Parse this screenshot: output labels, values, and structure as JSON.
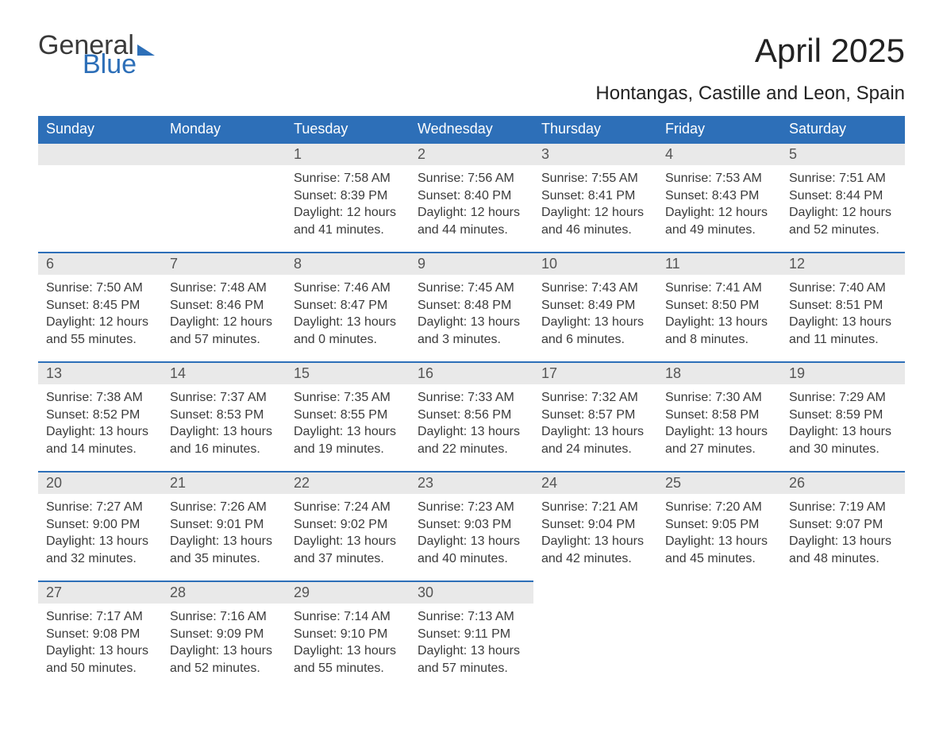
{
  "brand": {
    "word1": "General",
    "word2": "Blue"
  },
  "title": "April 2025",
  "location": "Hontangas, Castille and Leon, Spain",
  "colors": {
    "header_bg": "#2d6fb8",
    "header_text": "#ffffff",
    "daynum_bg": "#e9e9e9",
    "rule": "#2d6fb8"
  },
  "weekdays": [
    "Sunday",
    "Monday",
    "Tuesday",
    "Wednesday",
    "Thursday",
    "Friday",
    "Saturday"
  ],
  "weeks": [
    [
      null,
      null,
      {
        "n": "1",
        "sunrise": "Sunrise: 7:58 AM",
        "sunset": "Sunset: 8:39 PM",
        "daylight": "Daylight: 12 hours and 41 minutes."
      },
      {
        "n": "2",
        "sunrise": "Sunrise: 7:56 AM",
        "sunset": "Sunset: 8:40 PM",
        "daylight": "Daylight: 12 hours and 44 minutes."
      },
      {
        "n": "3",
        "sunrise": "Sunrise: 7:55 AM",
        "sunset": "Sunset: 8:41 PM",
        "daylight": "Daylight: 12 hours and 46 minutes."
      },
      {
        "n": "4",
        "sunrise": "Sunrise: 7:53 AM",
        "sunset": "Sunset: 8:43 PM",
        "daylight": "Daylight: 12 hours and 49 minutes."
      },
      {
        "n": "5",
        "sunrise": "Sunrise: 7:51 AM",
        "sunset": "Sunset: 8:44 PM",
        "daylight": "Daylight: 12 hours and 52 minutes."
      }
    ],
    [
      {
        "n": "6",
        "sunrise": "Sunrise: 7:50 AM",
        "sunset": "Sunset: 8:45 PM",
        "daylight": "Daylight: 12 hours and 55 minutes."
      },
      {
        "n": "7",
        "sunrise": "Sunrise: 7:48 AM",
        "sunset": "Sunset: 8:46 PM",
        "daylight": "Daylight: 12 hours and 57 minutes."
      },
      {
        "n": "8",
        "sunrise": "Sunrise: 7:46 AM",
        "sunset": "Sunset: 8:47 PM",
        "daylight": "Daylight: 13 hours and 0 minutes."
      },
      {
        "n": "9",
        "sunrise": "Sunrise: 7:45 AM",
        "sunset": "Sunset: 8:48 PM",
        "daylight": "Daylight: 13 hours and 3 minutes."
      },
      {
        "n": "10",
        "sunrise": "Sunrise: 7:43 AM",
        "sunset": "Sunset: 8:49 PM",
        "daylight": "Daylight: 13 hours and 6 minutes."
      },
      {
        "n": "11",
        "sunrise": "Sunrise: 7:41 AM",
        "sunset": "Sunset: 8:50 PM",
        "daylight": "Daylight: 13 hours and 8 minutes."
      },
      {
        "n": "12",
        "sunrise": "Sunrise: 7:40 AM",
        "sunset": "Sunset: 8:51 PM",
        "daylight": "Daylight: 13 hours and 11 minutes."
      }
    ],
    [
      {
        "n": "13",
        "sunrise": "Sunrise: 7:38 AM",
        "sunset": "Sunset: 8:52 PM",
        "daylight": "Daylight: 13 hours and 14 minutes."
      },
      {
        "n": "14",
        "sunrise": "Sunrise: 7:37 AM",
        "sunset": "Sunset: 8:53 PM",
        "daylight": "Daylight: 13 hours and 16 minutes."
      },
      {
        "n": "15",
        "sunrise": "Sunrise: 7:35 AM",
        "sunset": "Sunset: 8:55 PM",
        "daylight": "Daylight: 13 hours and 19 minutes."
      },
      {
        "n": "16",
        "sunrise": "Sunrise: 7:33 AM",
        "sunset": "Sunset: 8:56 PM",
        "daylight": "Daylight: 13 hours and 22 minutes."
      },
      {
        "n": "17",
        "sunrise": "Sunrise: 7:32 AM",
        "sunset": "Sunset: 8:57 PM",
        "daylight": "Daylight: 13 hours and 24 minutes."
      },
      {
        "n": "18",
        "sunrise": "Sunrise: 7:30 AM",
        "sunset": "Sunset: 8:58 PM",
        "daylight": "Daylight: 13 hours and 27 minutes."
      },
      {
        "n": "19",
        "sunrise": "Sunrise: 7:29 AM",
        "sunset": "Sunset: 8:59 PM",
        "daylight": "Daylight: 13 hours and 30 minutes."
      }
    ],
    [
      {
        "n": "20",
        "sunrise": "Sunrise: 7:27 AM",
        "sunset": "Sunset: 9:00 PM",
        "daylight": "Daylight: 13 hours and 32 minutes."
      },
      {
        "n": "21",
        "sunrise": "Sunrise: 7:26 AM",
        "sunset": "Sunset: 9:01 PM",
        "daylight": "Daylight: 13 hours and 35 minutes."
      },
      {
        "n": "22",
        "sunrise": "Sunrise: 7:24 AM",
        "sunset": "Sunset: 9:02 PM",
        "daylight": "Daylight: 13 hours and 37 minutes."
      },
      {
        "n": "23",
        "sunrise": "Sunrise: 7:23 AM",
        "sunset": "Sunset: 9:03 PM",
        "daylight": "Daylight: 13 hours and 40 minutes."
      },
      {
        "n": "24",
        "sunrise": "Sunrise: 7:21 AM",
        "sunset": "Sunset: 9:04 PM",
        "daylight": "Daylight: 13 hours and 42 minutes."
      },
      {
        "n": "25",
        "sunrise": "Sunrise: 7:20 AM",
        "sunset": "Sunset: 9:05 PM",
        "daylight": "Daylight: 13 hours and 45 minutes."
      },
      {
        "n": "26",
        "sunrise": "Sunrise: 7:19 AM",
        "sunset": "Sunset: 9:07 PM",
        "daylight": "Daylight: 13 hours and 48 minutes."
      }
    ],
    [
      {
        "n": "27",
        "sunrise": "Sunrise: 7:17 AM",
        "sunset": "Sunset: 9:08 PM",
        "daylight": "Daylight: 13 hours and 50 minutes."
      },
      {
        "n": "28",
        "sunrise": "Sunrise: 7:16 AM",
        "sunset": "Sunset: 9:09 PM",
        "daylight": "Daylight: 13 hours and 52 minutes."
      },
      {
        "n": "29",
        "sunrise": "Sunrise: 7:14 AM",
        "sunset": "Sunset: 9:10 PM",
        "daylight": "Daylight: 13 hours and 55 minutes."
      },
      {
        "n": "30",
        "sunrise": "Sunrise: 7:13 AM",
        "sunset": "Sunset: 9:11 PM",
        "daylight": "Daylight: 13 hours and 57 minutes."
      },
      null,
      null,
      null
    ]
  ]
}
